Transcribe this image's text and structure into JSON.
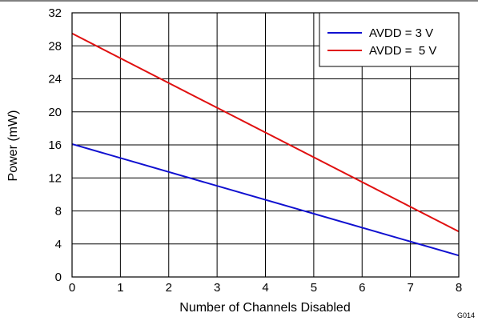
{
  "chart_data": {
    "type": "line",
    "xlabel": "Number of Channels Disabled",
    "ylabel": "Power (mW)",
    "xlim": [
      0,
      8
    ],
    "ylim": [
      0,
      32
    ],
    "xticks": [
      0,
      1,
      2,
      3,
      4,
      5,
      6,
      7,
      8
    ],
    "yticks": [
      0,
      4,
      8,
      12,
      16,
      20,
      24,
      28,
      32
    ],
    "grid": true,
    "legend_position": "top-right",
    "series": [
      {
        "name": "AVDD = 3 V",
        "color": "#1010d0",
        "x": [
          0,
          8
        ],
        "y": [
          16.1,
          2.6
        ]
      },
      {
        "name": "AVDD =  5 V",
        "color": "#e01010",
        "x": [
          0,
          8
        ],
        "y": [
          29.5,
          5.5
        ]
      }
    ],
    "figure_code": "G014"
  }
}
